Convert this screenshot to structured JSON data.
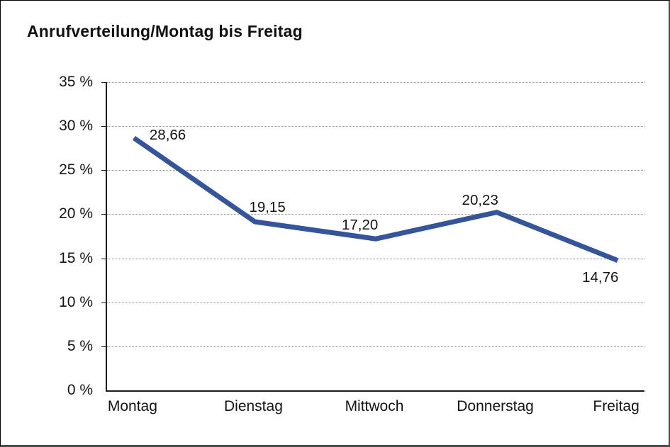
{
  "title": "Anrufverteilung/Montag bis Freitag",
  "chart_data": {
    "type": "line",
    "title": "Anrufverteilung/Montag bis Freitag",
    "categories": [
      "Montag",
      "Dienstag",
      "Mittwoch",
      "Donnerstag",
      "Freitag"
    ],
    "series": [
      {
        "name": "Anrufverteilung",
        "values": [
          28.66,
          19.15,
          17.2,
          20.23,
          14.76
        ],
        "values_formatted": [
          "28,66",
          "19,15",
          "17,20",
          "20,23",
          "14,76"
        ]
      }
    ],
    "xlabel": "",
    "ylabel": "",
    "ylim": [
      0,
      35
    ],
    "ytick_step": 5,
    "ytick_labels": [
      "0 %",
      "5 %",
      "10 %",
      "15 %",
      "20 %",
      "25 %",
      "30 %",
      "35 %"
    ],
    "grid": "horizontal-dotted",
    "legend_position": "none",
    "data_labels_visible": true
  },
  "colors": {
    "line": "#34549C",
    "grid": "#8e8e8e",
    "axis": "#1c1c1c",
    "text": "#141414",
    "background": "#ffffff"
  }
}
